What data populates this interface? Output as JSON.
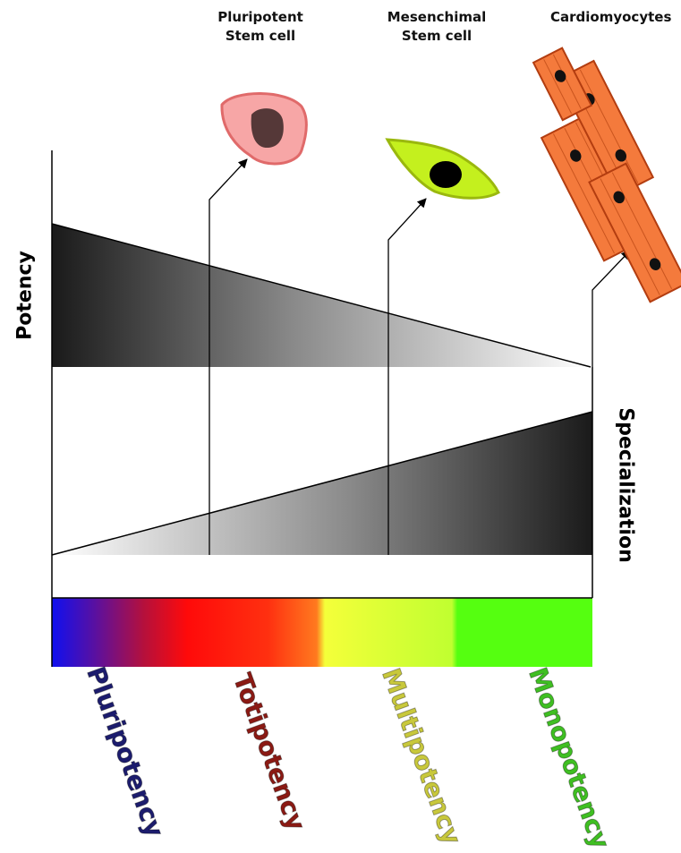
{
  "cells": {
    "pluripotent": {
      "line1": "Pluripotent",
      "line2": "Stem cell"
    },
    "mesenchimal": {
      "line1": "Mesenchimal",
      "line2": "Stem cell"
    },
    "cardiomyocytes": {
      "label": "Cardiomyocytes"
    }
  },
  "axes": {
    "potency": "Potency",
    "specialization": "Specialization"
  },
  "stages": [
    {
      "label": "Pluripotency",
      "color": "#1c1c6e"
    },
    {
      "label": "Totipotency",
      "color": "#8b1a14"
    },
    {
      "label": "Multipotency",
      "color": "#c8c83c"
    },
    {
      "label": "Monopotency",
      "color": "#3fbf22"
    }
  ],
  "colors": {
    "blue": "#1010f0",
    "red": "#ff0a0a",
    "orange": "#ff7a1f",
    "yellow": "#f4ff3a",
    "green": "#55ff10",
    "pluripotent_cell_fill": "#f7a6a6",
    "pluripotent_cell_border": "#e06a6a",
    "mesenchimal_cell_fill": "#c4f01e",
    "mesenchimal_cell_border": "#9ab80e",
    "cardiomyocyte_fill": "#f47a3c",
    "cardiomyocyte_border": "#b33d10"
  }
}
